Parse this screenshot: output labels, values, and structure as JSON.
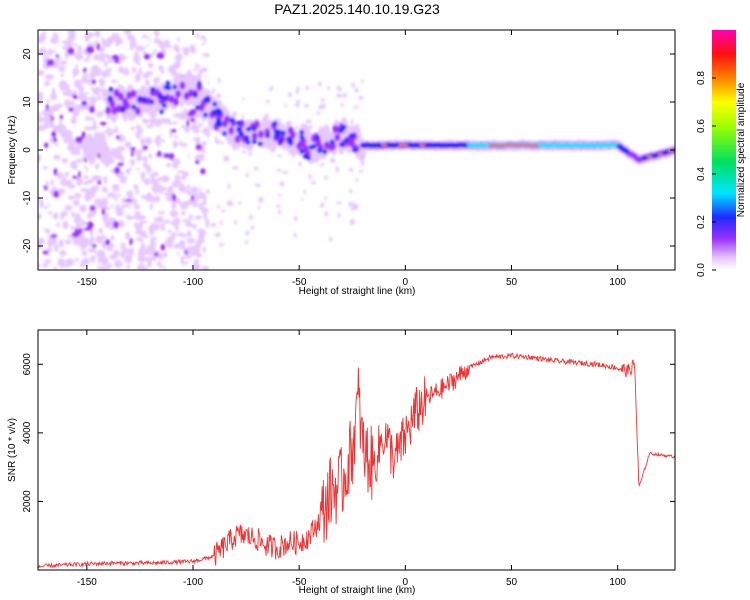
{
  "title": "PAZ1.2025.140.10.19.G23",
  "chart_data": [
    {
      "type": "heatmap",
      "xlabel": "Height of straight line (km)",
      "ylabel": "Frequency (Hz)",
      "xlim": [
        -173,
        127
      ],
      "ylim": [
        -25,
        25
      ],
      "xticks": [
        -150,
        -100,
        -50,
        0,
        50,
        100
      ],
      "yticks": [
        -20,
        -10,
        0,
        10,
        20
      ],
      "colorbar": {
        "label": "Normalized spectral amplitude",
        "range": [
          0,
          1
        ],
        "ticks": [
          "0.0",
          "0.2",
          "0.4",
          "0.6",
          "0.8"
        ],
        "colormap": [
          "#ffffff",
          "#e6c8ff",
          "#9b30ff",
          "#1e2cff",
          "#00e5ff",
          "#00e060",
          "#a0ff00",
          "#ffff00",
          "#ff8000",
          "#ff1010",
          "#ff00b0"
        ]
      },
      "ridge_centerline": [
        {
          "x": -140,
          "y": 10
        },
        {
          "x": -120,
          "y": 10
        },
        {
          "x": -100,
          "y": 13
        },
        {
          "x": -90,
          "y": 7
        },
        {
          "x": -80,
          "y": 4
        },
        {
          "x": -60,
          "y": 3
        },
        {
          "x": -45,
          "y": 1
        },
        {
          "x": -30,
          "y": 3
        },
        {
          "x": -20,
          "y": 1
        },
        {
          "x": 0,
          "y": 1
        },
        {
          "x": 20,
          "y": 1
        },
        {
          "x": 50,
          "y": 1
        },
        {
          "x": 80,
          "y": 1
        },
        {
          "x": 100,
          "y": 1
        },
        {
          "x": 110,
          "y": -2
        },
        {
          "x": 127,
          "y": 0
        }
      ]
    },
    {
      "type": "line",
      "xlabel": "Height of straight line (km)",
      "ylabel": "SNR (10 * v/v)",
      "xlim": [
        -173,
        127
      ],
      "ylim": [
        0,
        7000
      ],
      "xticks": [
        -150,
        -100,
        -50,
        0,
        50,
        100
      ],
      "yticks": [
        2000,
        4000,
        6000
      ],
      "series": [
        {
          "color": "#ee3333",
          "x": [
            -173,
            -160,
            -140,
            -120,
            -100,
            -90,
            -85,
            -80,
            -75,
            -70,
            -65,
            -60,
            -55,
            -50,
            -45,
            -40,
            -35,
            -30,
            -25,
            -22,
            -20,
            -15,
            -10,
            -5,
            0,
            5,
            10,
            15,
            20,
            30,
            40,
            50,
            60,
            70,
            80,
            90,
            100,
            105,
            108,
            110,
            115,
            127
          ],
          "y": [
            100,
            150,
            200,
            200,
            250,
            400,
            700,
            1000,
            1000,
            900,
            700,
            650,
            800,
            800,
            1000,
            1500,
            2300,
            2500,
            3500,
            5000,
            3500,
            3000,
            4000,
            3200,
            3900,
            4600,
            5000,
            5200,
            5400,
            5900,
            6200,
            6250,
            6200,
            6100,
            6050,
            6000,
            5900,
            5800,
            6000,
            2400,
            3400,
            3300
          ]
        }
      ]
    }
  ]
}
